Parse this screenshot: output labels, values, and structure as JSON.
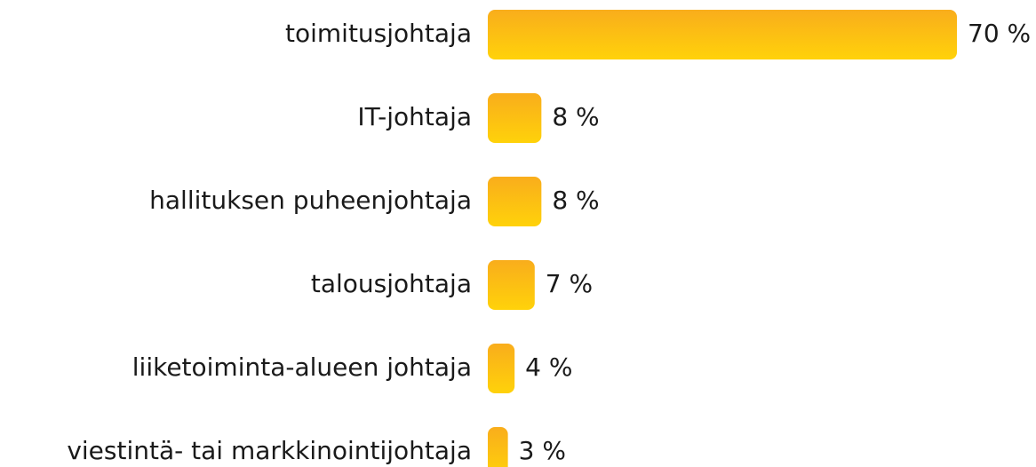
{
  "chart_data": {
    "type": "barh",
    "categories": [
      "toimitusjohtaja",
      "IT-johtaja",
      "hallituksen puheenjohtaja",
      "talousjohtaja",
      "liiketoiminta-alueen johtaja",
      "viestintä- tai markkinointijohtaja"
    ],
    "values": [
      70,
      8,
      8,
      7,
      4,
      3
    ],
    "value_labels": [
      "70 %",
      "8 %",
      "8 %",
      "7 %",
      "4 %",
      "3 %"
    ],
    "color": [
      "#f9ad1c",
      "#ffd20a"
    ]
  }
}
